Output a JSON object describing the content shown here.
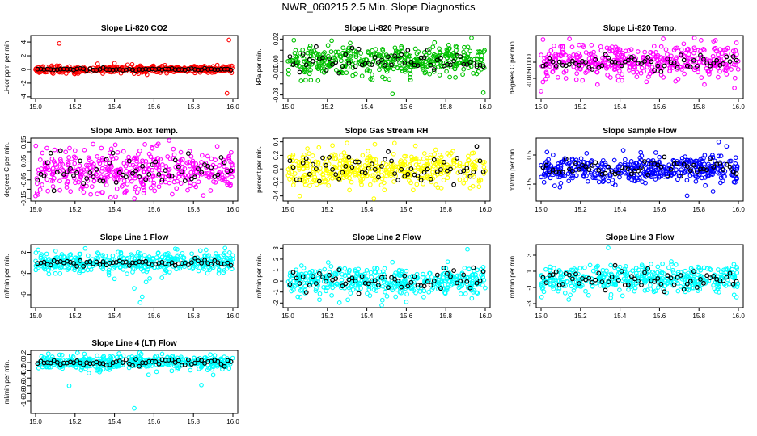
{
  "title": "NWR_060215  2.5 Min. Slope Diagnostics",
  "chart_data": [
    {
      "type": "scatter",
      "title": "Slope Li-820 CO2",
      "ylabel": "Li-cor ppm per min.",
      "xlim": [
        15.0,
        16.0
      ],
      "ylim": [
        -3.9,
        4.6
      ],
      "xticks": [
        "15.0",
        "15.2",
        "15.4",
        "15.6",
        "15.8",
        "16.0"
      ],
      "yticks": [
        -4,
        -2,
        0,
        2,
        4
      ],
      "ytick_labels": [
        "-4",
        "-2",
        "0",
        "2",
        "4"
      ],
      "colors": {
        "scan": "#ff0000",
        "mean": "#000000"
      },
      "spread": 0.25,
      "mean_spread": 0.08,
      "outliers": [
        [
          15.12,
          3.8
        ],
        [
          15.98,
          4.3
        ],
        [
          15.97,
          -3.5
        ],
        [
          15.4,
          0.9
        ],
        [
          15.34,
          -0.6
        ]
      ]
    },
    {
      "type": "scatter",
      "title": "Slope Li-820 Pressure",
      "ylabel": "kPa per min.",
      "xlim": [
        15.0,
        16.0
      ],
      "ylim": [
        -0.031,
        0.021
      ],
      "xticks": [
        "15.0",
        "15.2",
        "15.4",
        "15.6",
        "15.8",
        "16.0"
      ],
      "yticks": [
        -0.03,
        -0.02,
        -0.01,
        0,
        0.01,
        0.02
      ],
      "ytick_labels": [
        "-0.03",
        "",
        "-0.01",
        "0.00",
        "",
        "0.02"
      ],
      "colors": {
        "scan": "#00c000",
        "mean": "#000000"
      },
      "spread": 0.007,
      "mean_spread": 0.005,
      "outliers": [
        [
          15.53,
          -0.029
        ],
        [
          15.99,
          -0.028
        ],
        [
          15.03,
          0.019
        ]
      ]
    },
    {
      "type": "scatter",
      "title": "Slope Li-820 Temp.",
      "ylabel": "degrees C per min.",
      "xlim": [
        15.0,
        16.0
      ],
      "ylim": [
        -0.0105,
        0.0075
      ],
      "xticks": [
        "15.0",
        "15.2",
        "15.4",
        "15.6",
        "15.8",
        "16.0"
      ],
      "yticks": [
        -0.005,
        0
      ],
      "ytick_labels": [
        "-0.005",
        "0.000"
      ],
      "colors": {
        "scan": "#ff00ff",
        "mean": "#000000"
      },
      "spread": 0.0025,
      "mean_spread": 0.001,
      "outliers": [
        [
          15.01,
          0.007
        ],
        [
          15.0,
          -0.009
        ],
        [
          15.98,
          -0.008
        ],
        [
          15.99,
          0.006
        ]
      ]
    },
    {
      "type": "scatter",
      "title": "Slope Amb. Box Temp.",
      "ylabel": "degrees C per min.",
      "xlim": [
        15.0,
        16.0
      ],
      "ylim": [
        -0.15,
        0.16
      ],
      "xticks": [
        "15.0",
        "15.2",
        "15.4",
        "15.6",
        "15.8",
        "16.0"
      ],
      "yticks": [
        -0.15,
        -0.1,
        -0.05,
        0,
        0.05,
        0.1,
        0.15
      ],
      "ytick_labels": [
        "-0.15",
        "",
        "-0.05",
        "",
        "0.05",
        "",
        "0.15"
      ],
      "colors": {
        "scan": "#ff00ff",
        "mean": "#000000"
      },
      "spread": 0.06,
      "mean_spread": 0.05,
      "outliers": []
    },
    {
      "type": "scatter",
      "title": "Slope Gas Stream RH",
      "ylabel": "percent per min.",
      "xlim": [
        15.0,
        16.0
      ],
      "ylim": [
        -0.44,
        0.42
      ],
      "xticks": [
        "15.0",
        "15.2",
        "15.4",
        "15.6",
        "15.8",
        "16.0"
      ],
      "yticks": [
        -0.4,
        -0.2,
        0,
        0.2,
        0.4
      ],
      "ytick_labels": [
        "-0.4",
        "-0.2",
        "0.0",
        "0.2",
        "0.4"
      ],
      "colors": {
        "scan": "#ffff00",
        "mean": "#000000"
      },
      "spread": 0.13,
      "mean_spread": 0.1,
      "outliers": [
        [
          15.54,
          0.38
        ],
        [
          15.06,
          -0.4
        ]
      ]
    },
    {
      "type": "scatter",
      "title": "Slope Sample Flow",
      "ylabel": "ml/min per min.",
      "xlim": [
        15.0,
        16.0
      ],
      "ylim": [
        -1.0,
        1.0
      ],
      "xticks": [
        "15.0",
        "15.2",
        "15.4",
        "15.6",
        "15.8",
        "16.0"
      ],
      "yticks": [
        -0.5,
        0.5
      ],
      "ytick_labels": [
        "-0.5",
        "0.5"
      ],
      "colors": {
        "scan": "#0000ff",
        "mean": "#000000"
      },
      "spread": 0.22,
      "mean_spread": 0.15,
      "outliers": [
        [
          15.9,
          0.95
        ],
        [
          15.94,
          0.8
        ],
        [
          15.74,
          -0.9
        ],
        [
          15.03,
          0.6
        ]
      ]
    },
    {
      "type": "scatter",
      "title": "Slope Line 1 Flow",
      "ylabel": "ml/min per min.",
      "xlim": [
        15.0,
        16.0
      ],
      "ylim": [
        -8.0,
        3.0
      ],
      "xticks": [
        "15.0",
        "15.2",
        "15.4",
        "15.6",
        "15.8",
        "16.0"
      ],
      "yticks": [
        -6,
        -2,
        2
      ],
      "ytick_labels": [
        "-6",
        "-2",
        "2"
      ],
      "colors": {
        "scan": "#00ffff",
        "mean": "#000000"
      },
      "spread": 1.0,
      "mean_spread": 0.3,
      "outliers": [
        [
          15.53,
          -7.5
        ],
        [
          15.54,
          -6.4
        ],
        [
          15.5,
          -4.8
        ],
        [
          15.56,
          -3.6
        ],
        [
          15.96,
          2.8
        ],
        [
          15.1,
          -2.0
        ],
        [
          15.4,
          -3.0
        ],
        [
          15.64,
          -2.8
        ]
      ]
    },
    {
      "type": "scatter",
      "title": "Slope Line 2 Flow",
      "ylabel": "ml/min per min.",
      "xlim": [
        15.0,
        16.0
      ],
      "ylim": [
        -2.2,
        3.1
      ],
      "xticks": [
        "15.0",
        "15.2",
        "15.4",
        "15.6",
        "15.8",
        "16.0"
      ],
      "yticks": [
        -2,
        -1,
        0,
        1,
        2,
        3
      ],
      "ytick_labels": [
        "-2",
        "-1",
        "0",
        "1",
        "2",
        "3"
      ],
      "colors": {
        "scan": "#00ffff",
        "mean": "#000000"
      },
      "spread": 0.65,
      "mean_spread": 0.5,
      "outliers": [
        [
          15.91,
          2.9
        ],
        [
          15.6,
          -1.9
        ],
        [
          15.16,
          -1.7
        ]
      ]
    },
    {
      "type": "scatter",
      "title": "Slope Line 3 Flow",
      "ylabel": "ml/min per min.",
      "xlim": [
        15.0,
        16.0
      ],
      "ylim": [
        -3.2,
        4.0
      ],
      "xticks": [
        "15.0",
        "15.2",
        "15.4",
        "15.6",
        "15.8",
        "16.0"
      ],
      "yticks": [
        -3,
        -1,
        1,
        3
      ],
      "ytick_labels": [
        "-3",
        "-1",
        "1",
        "3"
      ],
      "colors": {
        "scan": "#00ffff",
        "mean": "#000000"
      },
      "spread": 0.8,
      "mean_spread": 0.6,
      "outliers": [
        [
          15.34,
          3.9
        ],
        [
          15.99,
          -2.2
        ],
        [
          15.14,
          -2.5
        ],
        [
          15.66,
          2.2
        ]
      ]
    },
    {
      "type": "scatter",
      "title": "Slope Line 4 (LT) Flow",
      "ylabel": "ml/min per min.",
      "xlim": [
        15.0,
        16.0
      ],
      "ylim": [
        -1.25,
        0.25
      ],
      "xticks": [
        "15.0",
        "15.2",
        "15.4",
        "15.6",
        "15.8",
        "16.0"
      ],
      "yticks": [
        -1.0,
        -0.8,
        -0.6,
        -0.4,
        -0.2,
        0,
        0.2
      ],
      "ytick_labels": [
        "-1.0",
        "-0.8",
        "-0.6",
        "-0.4",
        "-0.2",
        "0.0",
        "0.2"
      ],
      "colors": {
        "scan": "#00ffff",
        "mean": "#000000"
      },
      "spread": 0.09,
      "mean_spread": 0.04,
      "outliers": [
        [
          15.5,
          -1.18
        ],
        [
          15.17,
          -0.6
        ],
        [
          15.84,
          -0.58
        ],
        [
          15.9,
          -0.32
        ]
      ]
    }
  ]
}
